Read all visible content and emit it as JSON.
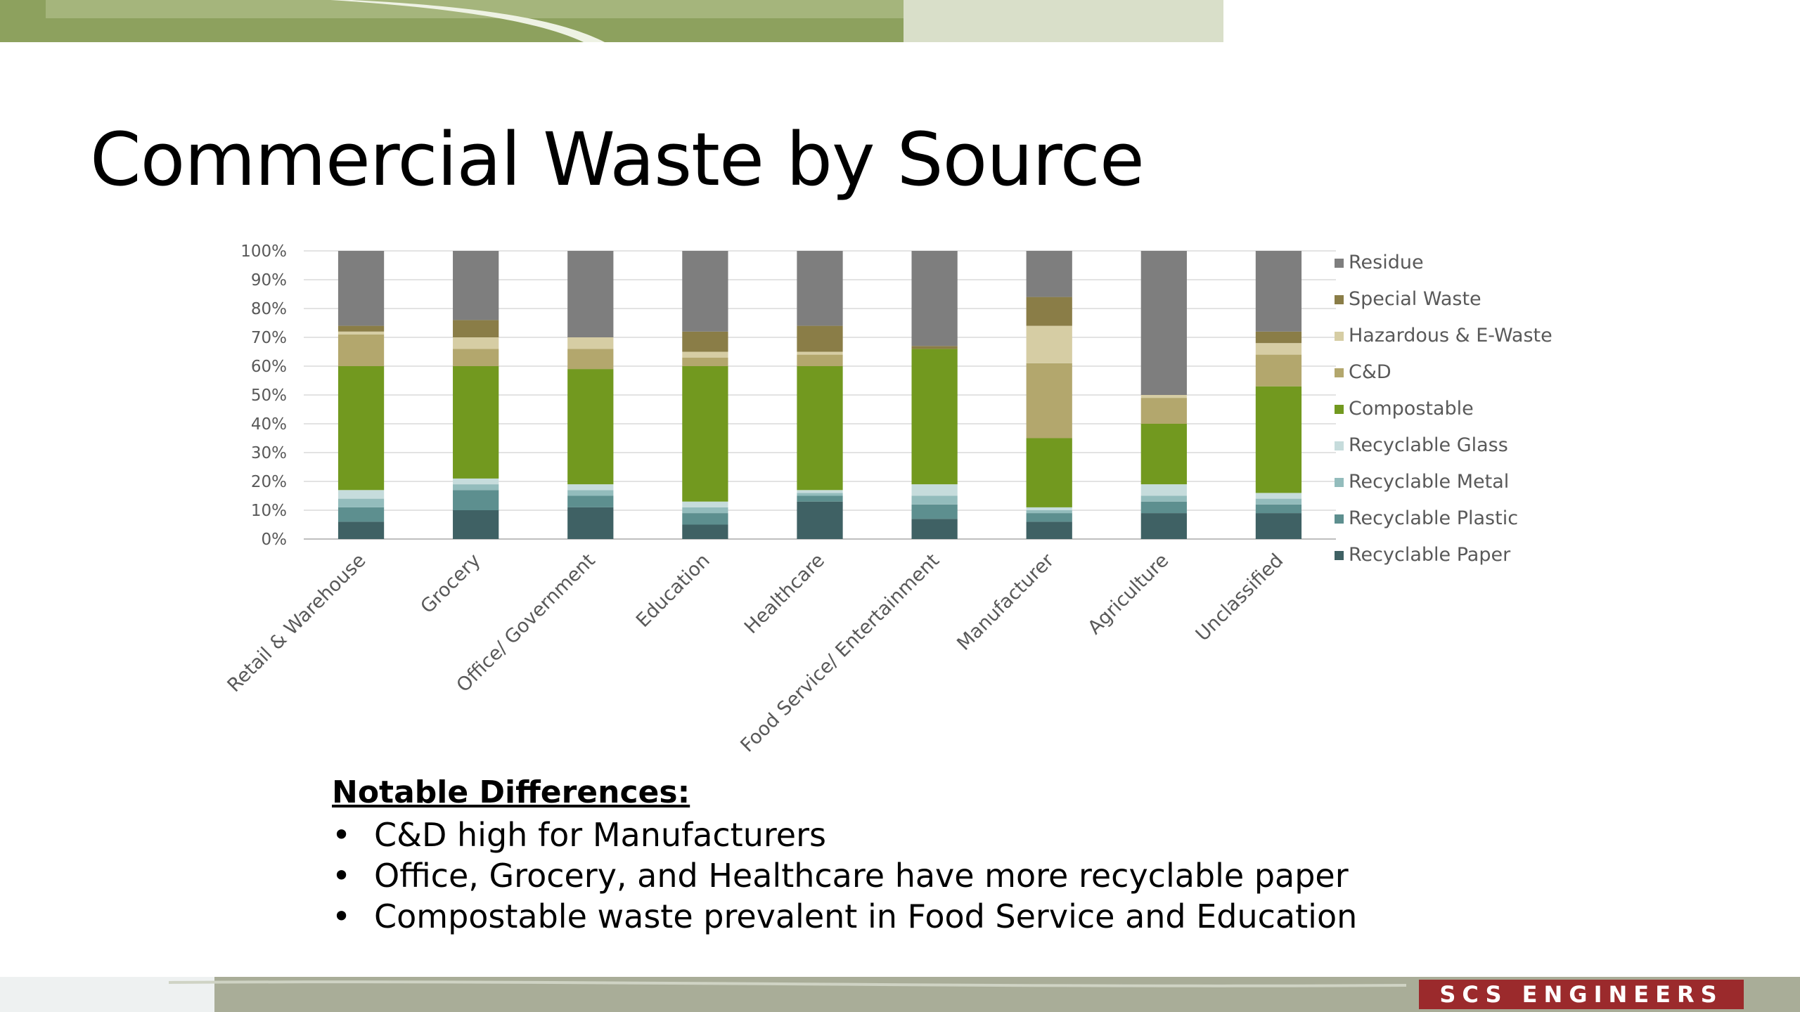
{
  "slide": {
    "title": "Commercial Waste by Source",
    "notes_heading": "Notable Differences:",
    "notes": [
      "C&D high for Manufacturers",
      "Office, Grocery, and Healthcare have more recyclable paper",
      "Compostable waste prevalent in Food Service and Education"
    ],
    "logo_text": "SCS ENGINEERS",
    "colors": {
      "top_band_dark": "#8da15e",
      "top_band_light": "#d9dfc9",
      "bottom_band": "#a9ad98",
      "logo_bg": "#9b2a2c"
    }
  },
  "chart_data": {
    "type": "bar",
    "stacked": true,
    "percent_stacked": true,
    "categories": [
      "Retail & Warehouse",
      "Grocery",
      "Office/ Government",
      "Education",
      "Healthcare",
      "Food Service/ Entertainment",
      "Manufacturer",
      "Agriculture",
      "Unclassified"
    ],
    "yticks": [
      "0%",
      "10%",
      "20%",
      "30%",
      "40%",
      "50%",
      "60%",
      "70%",
      "80%",
      "90%",
      "100%"
    ],
    "ylim": [
      0,
      100
    ],
    "grid": true,
    "legend_position": "right",
    "series": [
      {
        "name": "Recyclable Paper",
        "color": "#3f6164",
        "values": [
          6,
          10,
          11,
          5,
          13,
          7,
          6,
          9,
          9
        ]
      },
      {
        "name": "Recyclable Plastic",
        "color": "#5d8f8f",
        "values": [
          5,
          7,
          4,
          4,
          2,
          5,
          3,
          4,
          3
        ]
      },
      {
        "name": "Recyclable Metal",
        "color": "#93bcbc",
        "values": [
          3,
          2,
          2,
          2,
          1,
          3,
          1,
          2,
          2
        ]
      },
      {
        "name": "Recyclable Glass",
        "color": "#c6dcdc",
        "values": [
          3,
          2,
          2,
          2,
          1,
          4,
          1,
          4,
          2
        ]
      },
      {
        "name": "Compostable",
        "color": "#72991f",
        "values": [
          43,
          39,
          40,
          47,
          43,
          47,
          24,
          21,
          37
        ]
      },
      {
        "name": "C&D",
        "color": "#b3a76d",
        "values": [
          11,
          6,
          7,
          3,
          4,
          0,
          26,
          9,
          11
        ]
      },
      {
        "name": "Hazardous & E-Waste",
        "color": "#d6cda4",
        "values": [
          1,
          4,
          4,
          2,
          1,
          0,
          13,
          1,
          4
        ]
      },
      {
        "name": "Special Waste",
        "color": "#8a7d47",
        "values": [
          2,
          6,
          0,
          7,
          9,
          1,
          10,
          0,
          4
        ]
      },
      {
        "name": "Residue",
        "color": "#7e7e7e",
        "values": [
          26,
          24,
          30,
          28,
          26,
          33,
          16,
          50,
          28
        ]
      }
    ]
  }
}
